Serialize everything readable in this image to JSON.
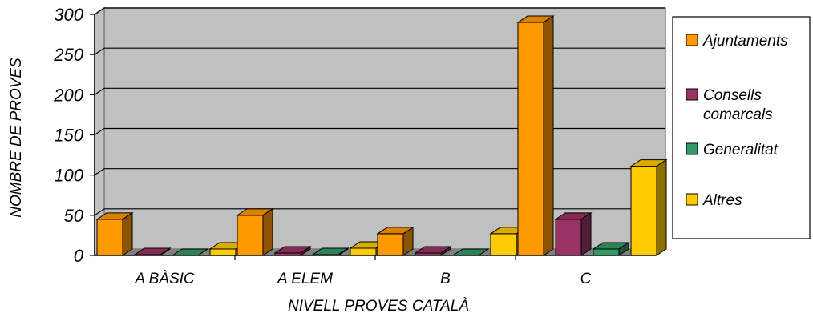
{
  "chart_data": {
    "type": "bar",
    "title": "",
    "xlabel": "NIVELL PROVES CATALÀ",
    "ylabel": "NOMBRE DE PROVES",
    "categories": [
      "A BÀSIC",
      "A ELEM",
      "B",
      "C"
    ],
    "ylim": [
      0,
      300
    ],
    "yticks": [
      0,
      50,
      100,
      150,
      200,
      250,
      300
    ],
    "grid": true,
    "three_d": true,
    "legend_position": "right",
    "series": [
      {
        "name": "Ajuntaments",
        "values": [
          45,
          50,
          27,
          290
        ],
        "color": "#FF9900"
      },
      {
        "name": "Consells comarcals",
        "values": [
          1,
          3,
          3,
          45
        ],
        "color": "#993366"
      },
      {
        "name": "Generalitat",
        "values": [
          0,
          1,
          0,
          8
        ],
        "color": "#339966"
      },
      {
        "name": "Altres",
        "values": [
          8,
          9,
          27,
          111
        ],
        "color": "#FFCC00"
      }
    ]
  },
  "legend": {
    "items": [
      {
        "lines": [
          "Ajuntaments"
        ]
      },
      {
        "lines": [
          "Consells",
          "comarcals"
        ]
      },
      {
        "lines": [
          "Generalitat"
        ]
      },
      {
        "lines": [
          "Altres"
        ]
      }
    ]
  }
}
